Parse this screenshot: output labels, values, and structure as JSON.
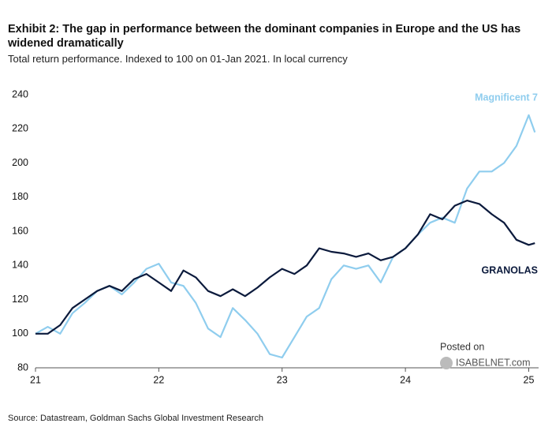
{
  "chart_data": {
    "type": "line",
    "title": "Exhibit 2: The gap in performance between the dominant companies in Europe and the US has widened dramatically",
    "subtitle": "Total return performance. Indexed to 100 on 01-Jan 2021. In local currency",
    "source": "Source: Datastream, Goldman Sachs Global Investment Research",
    "annotations": [
      "Posted on",
      "ISABELNET.com"
    ],
    "x": [
      21.0,
      21.1,
      21.2,
      21.3,
      21.4,
      21.5,
      21.6,
      21.7,
      21.8,
      21.9,
      22.0,
      22.1,
      22.2,
      22.3,
      22.4,
      22.5,
      22.6,
      22.7,
      22.8,
      22.9,
      23.0,
      23.1,
      23.2,
      23.3,
      23.4,
      23.5,
      23.6,
      23.7,
      23.8,
      23.9,
      24.0,
      24.1,
      24.2,
      24.3,
      24.4,
      24.5,
      24.6,
      24.7,
      24.8,
      24.9,
      25.0,
      25.05
    ],
    "series": [
      {
        "name": "Magnificent 7",
        "color": "#8fcdee",
        "values": [
          100,
          104,
          100,
          112,
          118,
          125,
          128,
          123,
          130,
          138,
          141,
          130,
          128,
          118,
          103,
          98,
          115,
          108,
          100,
          88,
          86,
          98,
          110,
          115,
          132,
          140,
          138,
          140,
          130,
          145,
          150,
          158,
          165,
          168,
          165,
          185,
          195,
          195,
          200,
          210,
          228,
          218
        ]
      },
      {
        "name": "GRANOLAS",
        "color": "#0b1a3c",
        "values": [
          100,
          100,
          105,
          115,
          120,
          125,
          128,
          125,
          132,
          135,
          130,
          125,
          137,
          133,
          125,
          122,
          126,
          122,
          127,
          133,
          138,
          135,
          140,
          150,
          148,
          147,
          145,
          147,
          143,
          145,
          150,
          158,
          170,
          167,
          175,
          178,
          176,
          170,
          165,
          155,
          152,
          153
        ]
      }
    ],
    "xlim": [
      21,
      25.08
    ],
    "xticks": [
      21,
      22,
      23,
      24,
      25
    ],
    "ylim": [
      80,
      240
    ],
    "yticks": [
      80,
      100,
      120,
      140,
      160,
      180,
      200,
      220,
      240
    ],
    "grid": false
  }
}
